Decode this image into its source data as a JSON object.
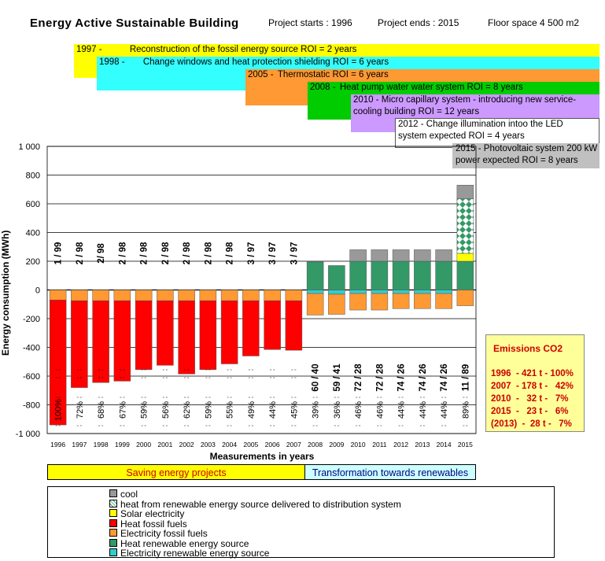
{
  "header": {
    "title": "Energy  Active  Sustainable  Building",
    "project_starts": "Project starts : 1996",
    "project_ends": "Project ends : 2015",
    "floor_space": "Floor space 4 500 m2"
  },
  "projects": [
    {
      "year": "1997 -",
      "text": "Reconstruction of the fossil energy source ROI = 2 years",
      "color": "#ffff00"
    },
    {
      "year": "1998 -",
      "text": "Change windows and heat protection shielding ROI = 6 years",
      "color": "#33ffff"
    },
    {
      "year": "2005 -",
      "text": "Thermostatic ROI = 6 years",
      "color": "#ff9933"
    },
    {
      "year": "2008 -",
      "text": "Heat pump water water system ROI = 8 years",
      "color": "#00cc00"
    },
    {
      "year": "",
      "text": "2010 - Micro capillary system - introducing new service-cooling building ROI = 12 years",
      "color": "#cc99ff"
    },
    {
      "year": "",
      "text": "2012 - Change illumination intoo the LED system expected ROI = 4 years",
      "color": "#ffffff"
    },
    {
      "year": "",
      "text": "2015 - Photovoltaic system 200 kW power expected ROI = 8 years",
      "color": "#c0c0c0"
    }
  ],
  "phases": {
    "saving": "Saving energy projects",
    "transformation": "Transformation towards renewables"
  },
  "emissions": {
    "title": "Emissions  CO2",
    "rows": [
      "1996  - 421 t - 100%",
      "2007  - 178 t -   42%",
      "2010  -   32 t -   7%",
      "2015  -   23 t -   6%",
      "(2013)  -  28 t -   7%"
    ]
  },
  "legend": [
    {
      "label": "cool",
      "color": "#999999",
      "key": "cool"
    },
    {
      "label": "heat from renewable energy source delivered to distribution system",
      "color": "#ffffff",
      "key": "heat_delivered"
    },
    {
      "label": "Solar electricity",
      "color": "#ffff00",
      "key": "solar"
    },
    {
      "label": "Heat fossil fuels",
      "color": "#ff0000",
      "key": "heat_fossil"
    },
    {
      "label": "Electricity fossil fuels",
      "color": "#ff9933",
      "key": "elec_fossil"
    },
    {
      "label": "Heat renewable energy source",
      "color": "#339966",
      "key": "heat_renew"
    },
    {
      "label": "Electricity renewable energy source",
      "color": "#33cccc",
      "key": "elec_renew"
    }
  ],
  "chart_data": {
    "type": "bar",
    "title": "",
    "xlabel": "Measurements in years",
    "ylabel": "Energy consumption (MWh)",
    "ylim": [
      -1000,
      1000
    ],
    "yticks": [
      "1 000",
      "800",
      "600",
      "400",
      "200",
      "0",
      "-200",
      "-400",
      "-600",
      "-800",
      "-1 000"
    ],
    "grid": true,
    "categories": [
      "1996",
      "1997",
      "1998",
      "1999",
      "2000",
      "2001",
      "2002",
      "2003",
      "2004",
      "2005",
      "2006",
      "2007",
      "2008",
      "2009",
      "2010",
      "2011",
      "2012",
      "2013",
      "2014",
      "2015"
    ],
    "top_labels": [
      "1 / 99",
      "2 / 98",
      "2/ 98",
      "2 / 98",
      "2 / 98",
      "2 / 98",
      "2 / 98",
      "2 / 98",
      "2 / 98",
      "3 / 97",
      "3 / 97",
      "3 / 97",
      "60 / 40",
      "59 / 41",
      "72 / 28",
      "72 / 28",
      "74 / 26",
      "74 / 26",
      "74 / 26",
      "11 / 89"
    ],
    "percent_labels": [
      "100%",
      "72%",
      "68%",
      "67%",
      "59%",
      "56%",
      "62%",
      "59%",
      "55%",
      "49%",
      "44%",
      "45%",
      "39%",
      "36%",
      "46%",
      "46%",
      "44%",
      "44%",
      "44%",
      "89%"
    ],
    "series": [
      {
        "name": "Electricity fossil fuels",
        "key": "elec_fossil",
        "values": [
          -70,
          -75,
          -75,
          -75,
          -75,
          -75,
          -75,
          -75,
          -75,
          -75,
          -75,
          -75,
          -150,
          -140,
          -115,
          -115,
          -105,
          -105,
          -105,
          -110
        ]
      },
      {
        "name": "Heat fossil fuels",
        "key": "heat_fossil",
        "values": [
          -870,
          -605,
          -570,
          -560,
          -480,
          -450,
          -510,
          -480,
          -440,
          -385,
          -340,
          -345,
          0,
          0,
          0,
          0,
          0,
          0,
          0,
          0
        ]
      },
      {
        "name": "Electricity renewable energy source",
        "key": "elec_renew",
        "values": [
          0,
          0,
          0,
          0,
          0,
          0,
          0,
          0,
          0,
          0,
          0,
          0,
          -25,
          -30,
          -25,
          -25,
          -25,
          -25,
          -25,
          0
        ]
      },
      {
        "name": "Heat renewable energy source",
        "key": "heat_renew",
        "values": [
          0,
          0,
          0,
          0,
          0,
          0,
          0,
          0,
          0,
          0,
          0,
          0,
          195,
          170,
          200,
          200,
          200,
          200,
          200,
          200
        ]
      },
      {
        "name": "cool",
        "key": "cool",
        "values": [
          0,
          0,
          0,
          0,
          0,
          0,
          0,
          0,
          0,
          0,
          0,
          0,
          0,
          0,
          80,
          80,
          80,
          80,
          80,
          95
        ]
      },
      {
        "name": "Solar electricity",
        "key": "solar",
        "values": [
          0,
          0,
          0,
          0,
          0,
          0,
          0,
          0,
          0,
          0,
          0,
          0,
          0,
          0,
          0,
          0,
          0,
          0,
          0,
          55
        ]
      },
      {
        "name": "heat from renewable energy source delivered to distribution system",
        "key": "heat_delivered",
        "values": [
          0,
          0,
          0,
          0,
          0,
          0,
          0,
          0,
          0,
          0,
          0,
          0,
          0,
          0,
          0,
          0,
          0,
          0,
          0,
          380
        ]
      }
    ]
  }
}
